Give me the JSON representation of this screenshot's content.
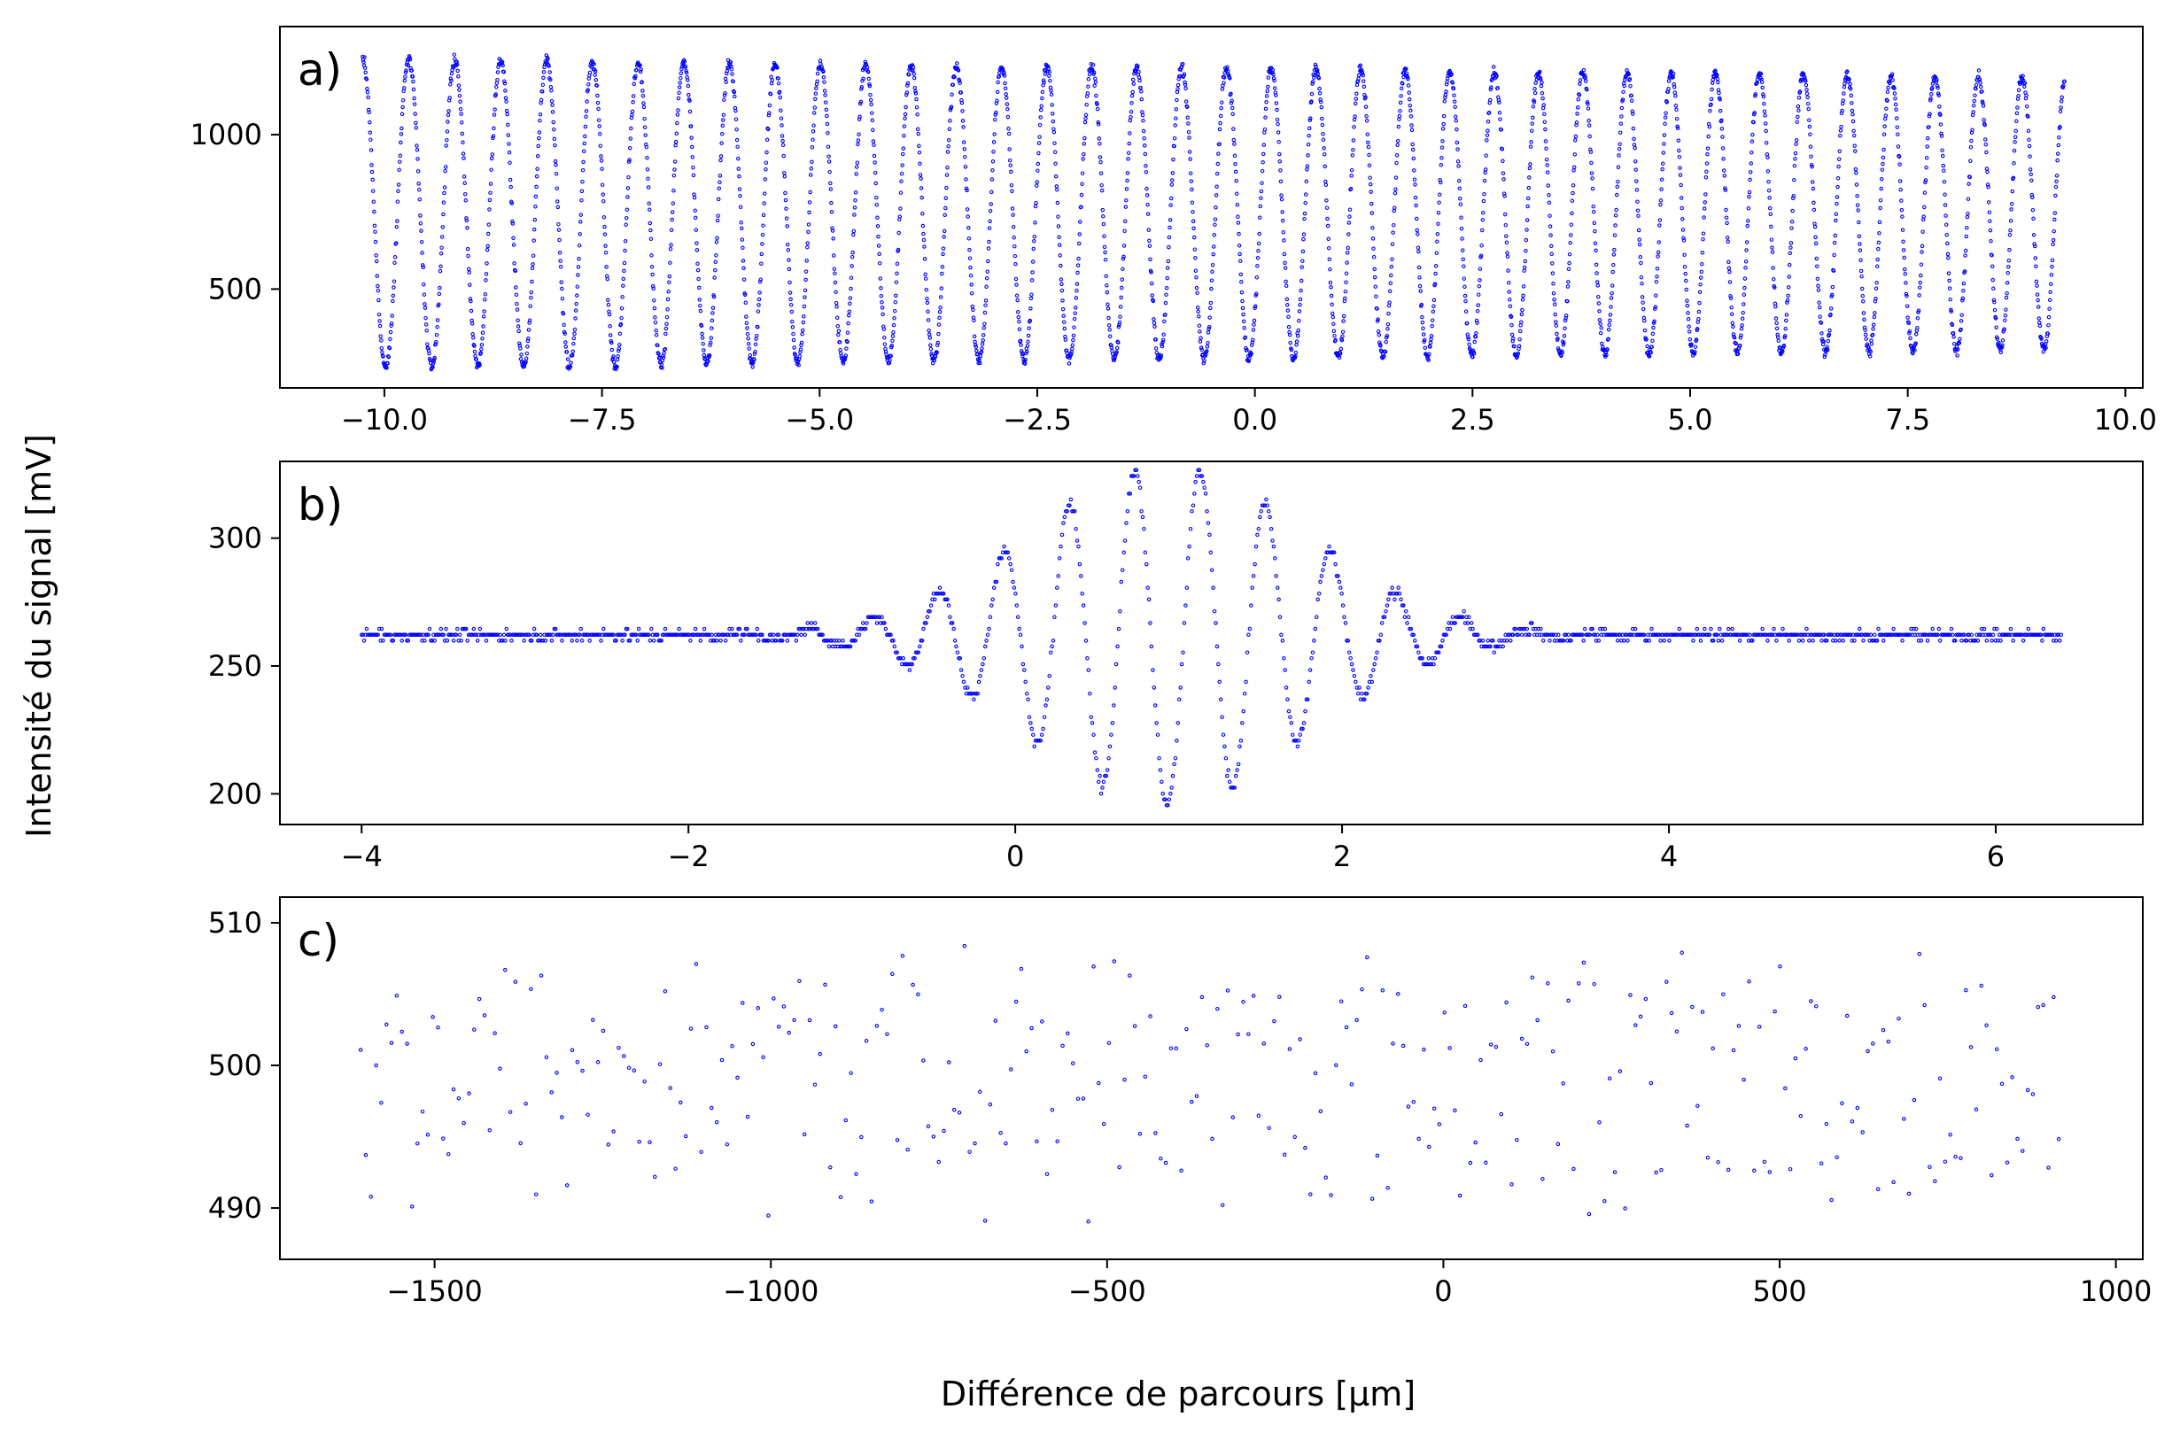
{
  "figure": {
    "ylabel": "Intensité du signal [mV]",
    "xlabel": "Différence de parcours [μm]"
  },
  "chart_data": [
    {
      "type": "scatter",
      "panel_label": "a)",
      "xlim": [
        -11.2,
        10.2
      ],
      "ylim": [
        180,
        1350
      ],
      "xticks": [
        -10.0,
        -7.5,
        -5.0,
        -2.5,
        0.0,
        2.5,
        5.0,
        7.5,
        10.0
      ],
      "xtick_labels": [
        "−10.0",
        "−7.5",
        "−5.0",
        "−2.5",
        "0.0",
        "2.5",
        "5.0",
        "7.5",
        "10.0"
      ],
      "yticks": [
        500,
        1000
      ],
      "ytick_labels": [
        "500",
        "1000"
      ],
      "grid": false,
      "marker_color": "#0000ff",
      "signal": {
        "x_range": [
          -10.25,
          9.3
        ],
        "n_points": 3400,
        "fringe_period": 0.53,
        "fringe_period_drift": -0.03,
        "offset_mV": 745,
        "amplitude_mV": 500,
        "amplitude_drift_mV": -60,
        "floor_mV": 240
      },
      "points": []
    },
    {
      "type": "scatter",
      "panel_label": "b)",
      "xlim": [
        -4.5,
        6.9
      ],
      "ylim": [
        188,
        330
      ],
      "xticks": [
        -4,
        -2,
        0,
        2,
        4,
        6
      ],
      "xtick_labels": [
        "−4",
        "−2",
        "0",
        "2",
        "4",
        "6"
      ],
      "yticks": [
        200,
        250,
        300
      ],
      "ytick_labels": [
        "200",
        "250",
        "300"
      ],
      "grid": false,
      "marker_color": "#0000ff",
      "signal": {
        "x_range": [
          -4.0,
          6.4
        ],
        "n_points": 1350,
        "baseline_mV": 262,
        "center_um": 0.93,
        "fringe_period": 0.4,
        "envelope_amplitude_mV": 66,
        "envelope_width_um": 0.85,
        "quantization_mV": 2.3
      },
      "points": []
    },
    {
      "type": "scatter",
      "panel_label": "c)",
      "xlim": [
        -1730,
        1040
      ],
      "ylim": [
        486.4,
        511.8
      ],
      "xticks": [
        -1500,
        -1000,
        -500,
        0,
        500,
        1000
      ],
      "xtick_labels": [
        "−1500",
        "−1000",
        "−500",
        "0",
        "500",
        "1000"
      ],
      "yticks": [
        490,
        500,
        510
      ],
      "ytick_labels": [
        "490",
        "500",
        "510"
      ],
      "grid": false,
      "marker_color": "#0000ff",
      "signal": {
        "x_range": [
          -1610,
          915
        ],
        "n_points": 330,
        "offset_mV": 499,
        "amplitude_mV": 10.5
      },
      "points": []
    }
  ]
}
